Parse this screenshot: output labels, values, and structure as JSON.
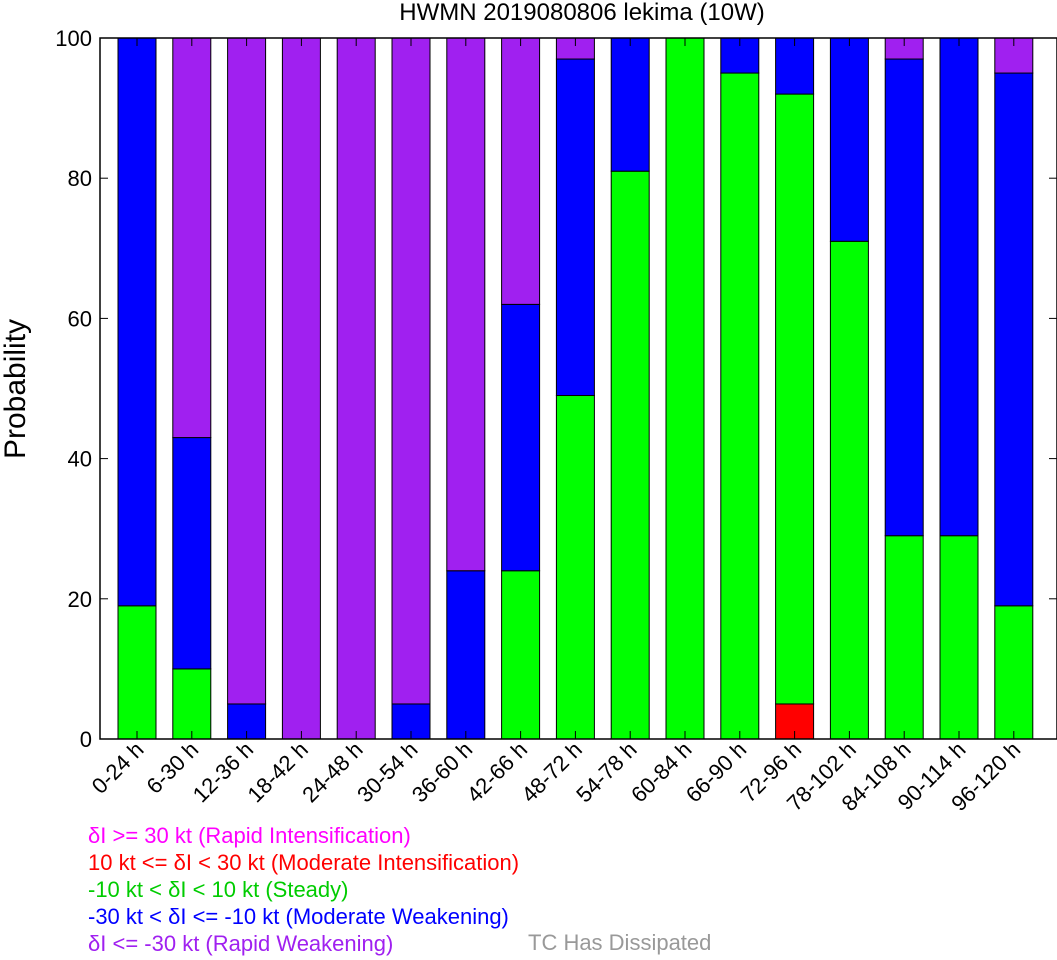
{
  "chart_data": {
    "type": "bar",
    "stacked": true,
    "title": "HWMN 2019080806 lekima (10W)",
    "xlabel": "",
    "ylabel": "Probability",
    "ylim": [
      0,
      100
    ],
    "yticks": [
      0,
      20,
      40,
      60,
      80,
      100
    ],
    "categories": [
      "0-24 h",
      "6-30 h",
      "12-36 h",
      "18-42 h",
      "24-48 h",
      "30-54 h",
      "36-60 h",
      "42-66 h",
      "48-72 h",
      "54-78 h",
      "60-84 h",
      "66-90 h",
      "72-96 h",
      "78-102 h",
      "84-108 h",
      "90-114 h",
      "96-120 h"
    ],
    "series": [
      {
        "name": "δI >= 30 kt (Rapid Intensification)",
        "color": "#ff00ff",
        "values": [
          0,
          0,
          0,
          0,
          0,
          0,
          0,
          0,
          0,
          0,
          0,
          0,
          0,
          0,
          0,
          0,
          0
        ]
      },
      {
        "name": "10 kt <= δI < 30 kt (Moderate Intensification)",
        "color": "#ff0000",
        "values": [
          0,
          0,
          0,
          0,
          0,
          0,
          0,
          0,
          0,
          0,
          0,
          0,
          5,
          0,
          0,
          0,
          0
        ]
      },
      {
        "name": "-10 kt < δI < 10 kt (Steady)",
        "color": "#00ff00",
        "values": [
          19,
          10,
          0,
          0,
          0,
          0,
          0,
          24,
          49,
          81,
          100,
          95,
          87,
          71,
          29,
          29,
          19
        ]
      },
      {
        "name": "-30 kt < δI <= -10 kt (Moderate Weakening)",
        "color": "#0000ff",
        "values": [
          81,
          33,
          5,
          0,
          0,
          5,
          24,
          38,
          48,
          19,
          0,
          5,
          8,
          29,
          68,
          71,
          76
        ]
      },
      {
        "name": "δI <= -30 kt (Rapid Weakening)",
        "color": "#a020f0",
        "values": [
          0,
          57,
          95,
          100,
          100,
          95,
          76,
          38,
          3,
          0,
          0,
          0,
          0,
          0,
          3,
          0,
          5
        ]
      }
    ],
    "stack_order": [
      1,
      2,
      3,
      4,
      0
    ],
    "legend": {
      "placement": "bottom-left",
      "lines": [
        {
          "text": "δI >= 30 kt (Rapid Intensification)",
          "color": "#ff00ff"
        },
        {
          "text": "10 kt <= δI < 30 kt (Moderate Intensification)",
          "color": "#ff0000"
        },
        {
          "text": "-10 kt < δI < 10 kt (Steady)",
          "color": "#00cc00"
        },
        {
          "text": "-30 kt < δI <= -10 kt (Moderate Weakening)",
          "color": "#0000ff"
        },
        {
          "text": "δI <= -30 kt (Rapid Weakening)",
          "color": "#a020f0"
        }
      ],
      "extra": {
        "text": "TC Has Dissipated",
        "color": "#999999"
      }
    },
    "grid": false
  }
}
